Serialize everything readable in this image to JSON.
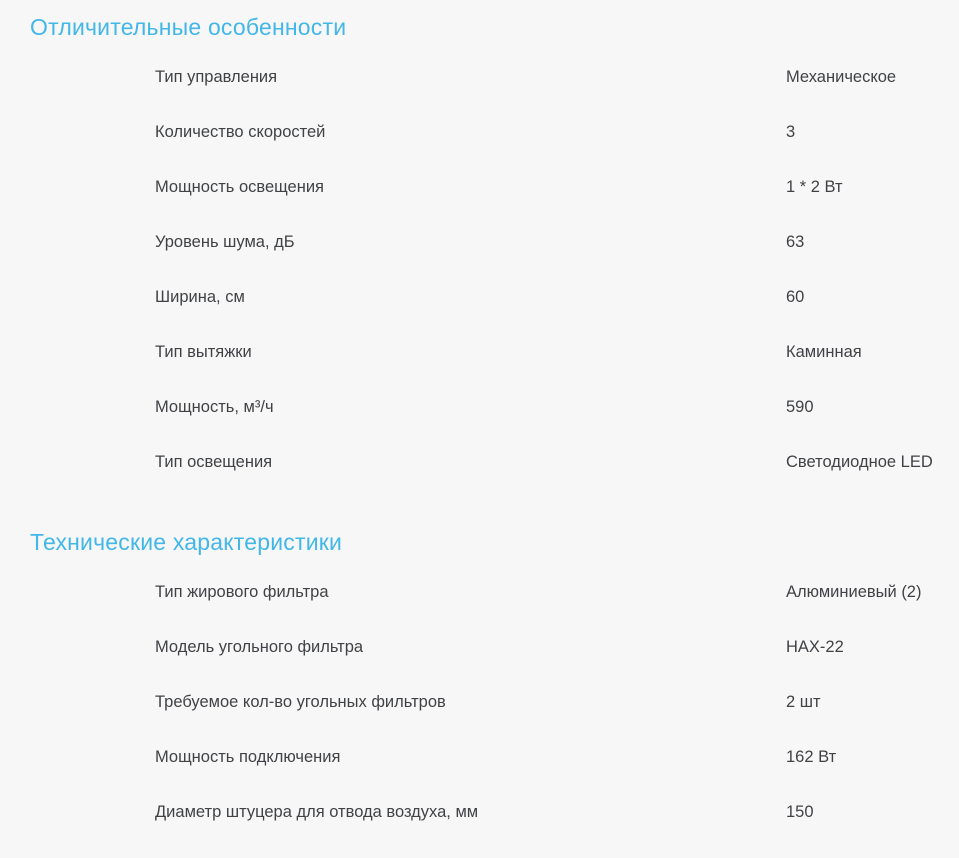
{
  "page": {
    "background_color": "#f7f7f7",
    "heading_color": "#42b7e8",
    "text_color": "#404246"
  },
  "sections": [
    {
      "title": "Отличительные особенности",
      "rows": [
        {
          "label": "Тип управления",
          "value": "Механическое"
        },
        {
          "label": "Количество скоростей",
          "value": "3"
        },
        {
          "label": "Мощность освещения",
          "value": "1 * 2 Вт"
        },
        {
          "label": "Уровень шума, дБ",
          "value": "63"
        },
        {
          "label": "Ширина, см",
          "value": "60"
        },
        {
          "label": "Тип вытяжки",
          "value": "Каминная"
        },
        {
          "label": "Мощность, м³/ч",
          "value": "590"
        },
        {
          "label": "Тип освещения",
          "value": "Светодиодное LED"
        }
      ]
    },
    {
      "title": "Технические характеристики",
      "rows": [
        {
          "label": "Тип жирового фильтра",
          "value": "Алюминиевый (2)"
        },
        {
          "label": "Модель угольного фильтра",
          "value": "HAX-22"
        },
        {
          "label": "Требуемое кол-во угольных фильтров",
          "value": "2 шт"
        },
        {
          "label": "Мощность подключения",
          "value": "162 Вт"
        },
        {
          "label": "Диаметр штуцера для отвода воздуха, мм",
          "value": "150"
        }
      ]
    }
  ]
}
